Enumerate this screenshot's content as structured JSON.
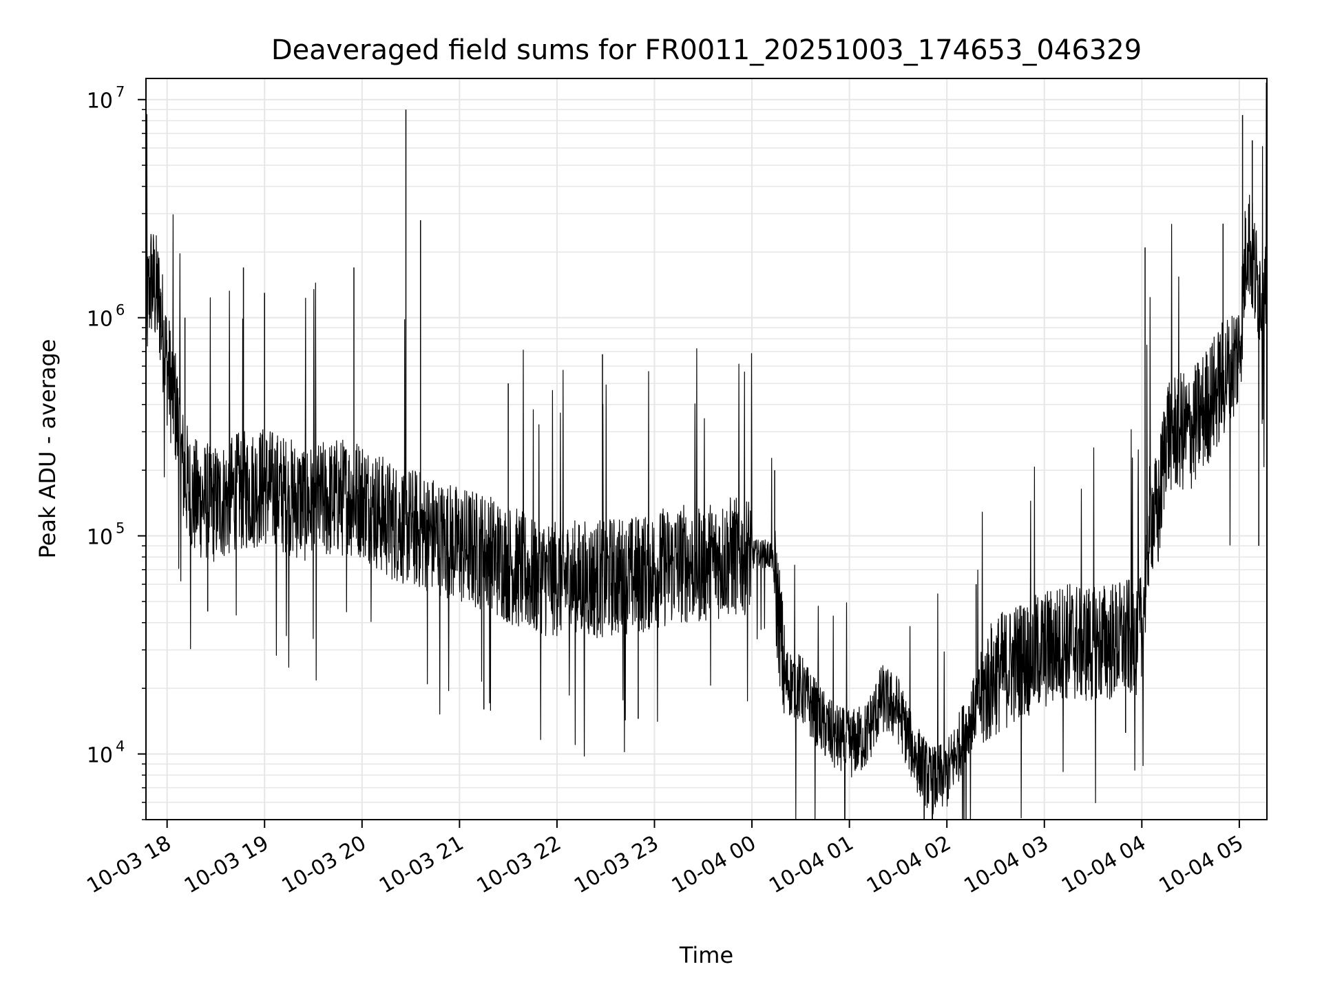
{
  "chart_data": {
    "type": "line",
    "title": "Deaveraged field sums for FR0011_20251003_174653_046329",
    "xlabel": "Time",
    "ylabel": "Peak ADU - average",
    "y_scale": "log",
    "ylim": [
      5000,
      12500000
    ],
    "xlim": [
      "2025-10-03 17:47",
      "2025-10-04 05:17"
    ],
    "x_ticks": [
      "10-03 18",
      "10-03 19",
      "10-03 20",
      "10-03 21",
      "10-03 22",
      "10-03 23",
      "10-04 00",
      "10-04 01",
      "10-04 02",
      "10-04 03",
      "10-04 04",
      "10-04 05"
    ],
    "y_ticks": [
      {
        "value": 10000,
        "base": "10",
        "exp": "4"
      },
      {
        "value": 100000,
        "base": "10",
        "exp": "5"
      },
      {
        "value": 1000000,
        "base": "10",
        "exp": "6"
      },
      {
        "value": 10000000,
        "base": "10",
        "exp": "7"
      }
    ],
    "grid": true,
    "line_color": "#000000",
    "series": [
      {
        "points": [
          [
            "2025-10-03 17:47",
            1000000
          ],
          [
            "2025-10-03 17:50",
            1500000
          ],
          [
            "2025-10-03 17:55",
            1200000
          ],
          [
            "2025-10-03 18:00",
            600000
          ],
          [
            "2025-10-03 18:05",
            400000
          ],
          [
            "2025-10-03 18:10",
            200000
          ],
          [
            "2025-10-03 18:15",
            150000
          ],
          [
            "2025-10-03 18:30",
            140000
          ],
          [
            "2025-10-03 18:45",
            160000
          ],
          [
            "2025-10-03 19:00",
            170000
          ],
          [
            "2025-10-03 19:15",
            150000
          ],
          [
            "2025-10-03 19:30",
            140000
          ],
          [
            "2025-10-03 19:45",
            150000
          ],
          [
            "2025-10-03 20:00",
            150000
          ],
          [
            "2025-10-03 20:15",
            120000
          ],
          [
            "2025-10-03 20:30",
            110000
          ],
          [
            "2025-10-03 20:45",
            100000
          ],
          [
            "2025-10-03 21:00",
            90000
          ],
          [
            "2025-10-03 21:15",
            85000
          ],
          [
            "2025-10-03 21:30",
            75000
          ],
          [
            "2025-10-03 21:45",
            65000
          ],
          [
            "2025-10-03 22:00",
            65000
          ],
          [
            "2025-10-03 22:15",
            62000
          ],
          [
            "2025-10-03 22:30",
            65000
          ],
          [
            "2025-10-03 22:45",
            65000
          ],
          [
            "2025-10-03 23:00",
            70000
          ],
          [
            "2025-10-03 23:15",
            75000
          ],
          [
            "2025-10-03 23:30",
            75000
          ],
          [
            "2025-10-03 23:45",
            80000
          ],
          [
            "2025-10-04 00:00",
            82000
          ],
          [
            "2025-10-04 00:12",
            82000
          ],
          [
            "2025-10-04 00:17",
            40000
          ],
          [
            "2025-10-04 00:20",
            22000
          ],
          [
            "2025-10-04 00:30",
            20000
          ],
          [
            "2025-10-04 00:40",
            15000
          ],
          [
            "2025-10-04 00:50",
            12000
          ],
          [
            "2025-10-04 01:00",
            11000
          ],
          [
            "2025-10-04 01:10",
            12000
          ],
          [
            "2025-10-04 01:20",
            18000
          ],
          [
            "2025-10-04 01:30",
            16000
          ],
          [
            "2025-10-04 01:40",
            10000
          ],
          [
            "2025-10-04 01:50",
            7500
          ],
          [
            "2025-10-04 02:00",
            8000
          ],
          [
            "2025-10-04 02:10",
            12000
          ],
          [
            "2025-10-04 02:20",
            18000
          ],
          [
            "2025-10-04 02:30",
            23000
          ],
          [
            "2025-10-04 02:45",
            27000
          ],
          [
            "2025-10-04 03:00",
            30000
          ],
          [
            "2025-10-04 03:15",
            33000
          ],
          [
            "2025-10-04 03:30",
            32000
          ],
          [
            "2025-10-04 03:45",
            33000
          ],
          [
            "2025-10-04 04:00",
            35000
          ],
          [
            "2025-10-04 04:05",
            130000
          ],
          [
            "2025-10-04 04:10",
            120000
          ],
          [
            "2025-10-04 04:15",
            300000
          ],
          [
            "2025-10-04 04:30",
            300000
          ],
          [
            "2025-10-04 04:45",
            450000
          ],
          [
            "2025-10-04 05:00",
            700000
          ],
          [
            "2025-10-04 05:05",
            2500000
          ],
          [
            "2025-10-04 05:10",
            1500000
          ],
          [
            "2025-10-04 05:17",
            1200000
          ]
        ]
      }
    ],
    "spikes": [
      [
        "2025-10-03 18:11",
        1000000
      ],
      [
        "2025-10-03 18:47",
        1700000
      ],
      [
        "2025-10-03 19:00",
        1300000
      ],
      [
        "2025-10-03 19:55",
        1700000
      ],
      [
        "2025-10-03 20:27",
        9000000
      ],
      [
        "2025-10-03 20:36",
        2800000
      ],
      [
        "2025-10-03 21:30",
        500000
      ],
      [
        "2025-10-03 22:28",
        680000
      ],
      [
        "2025-10-04 00:14",
        200000
      ],
      [
        "2025-10-04 02:18",
        60000
      ],
      [
        "2025-10-04 04:02",
        2100000
      ],
      [
        "2025-10-04 04:50",
        2700000
      ],
      [
        "2025-10-04 05:02",
        8500000
      ],
      [
        "2025-10-04 05:08",
        6500000
      ]
    ],
    "dips": [
      [
        "2025-10-03 18:25",
        45000
      ],
      [
        "2025-10-03 21:15",
        16000
      ],
      [
        "2025-10-03 22:50",
        14500
      ],
      [
        "2025-10-04 03:50",
        12500
      ],
      [
        "2025-10-04 05:12",
        90000
      ]
    ]
  }
}
